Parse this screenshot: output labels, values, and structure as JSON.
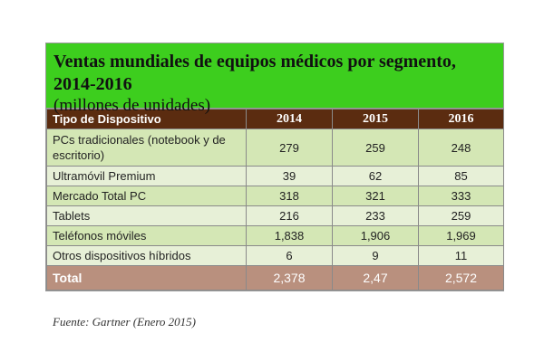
{
  "chart_data": {
    "type": "table",
    "title": "Ventas mundiales de equipos médicos por segmento, 2014-2016",
    "subtitle": "(millones de unidades)",
    "columns": [
      "Tipo de Dispositivo",
      "2014",
      "2015",
      "2016"
    ],
    "rows": [
      {
        "label": "PCs tradicionales (notebook y de escritorio)",
        "values": [
          "279",
          "259",
          "248"
        ]
      },
      {
        "label": "Ultramóvil Premium",
        "values": [
          "39",
          "62",
          "85"
        ]
      },
      {
        "label": "Mercado Total PC",
        "values": [
          "318",
          "321",
          "333"
        ]
      },
      {
        "label": "Tablets",
        "values": [
          "216",
          "233",
          "259"
        ]
      },
      {
        "label": "Teléfonos móviles",
        "values": [
          "1,838",
          "1,906",
          "1,969"
        ]
      },
      {
        "label": "Otros dispositivos híbridos",
        "values": [
          "6",
          "9",
          "11"
        ]
      }
    ],
    "total": {
      "label": "Total",
      "values": [
        "2,378",
        "2,47",
        "2,572"
      ]
    },
    "source": "Fuente: Gartner (Enero 2015)"
  },
  "colors": {
    "header_bg": "#3dce1e",
    "column_header_bg": "#5b2c10",
    "row_bg": "#d4e7b5",
    "row_alt_bg": "#e7f0d7",
    "total_bg": "#b9907e"
  }
}
